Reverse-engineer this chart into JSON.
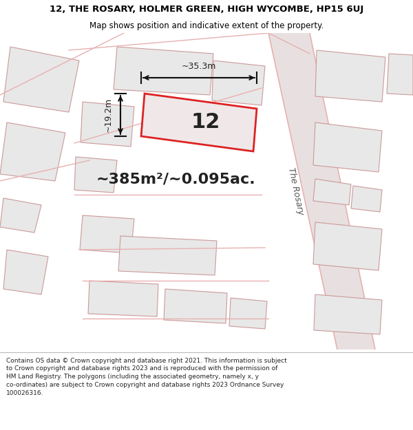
{
  "title_line1": "12, THE ROSARY, HOLMER GREEN, HIGH WYCOMBE, HP15 6UJ",
  "title_line2": "Map shows position and indicative extent of the property.",
  "footer_text": "Contains OS data © Crown copyright and database right 2021. This information is subject to Crown copyright and database rights 2023 and is reproduced with the permission of HM Land Registry. The polygons (including the associated geometry, namely x, y co-ordinates) are subject to Crown copyright and database rights 2023 Ordnance Survey 100026316.",
  "area_label": "~385m²/~0.095ac.",
  "plot_number": "12",
  "width_label": "~35.3m",
  "height_label": "~19.2m",
  "map_background": "#f0eeee",
  "road_color": "#e8b0b0",
  "road_fill": "#e8e0e0",
  "plot_fill": "#f0e8e8",
  "plot_edge_color": "#dd2222",
  "bld_fill": "#e8e8e8",
  "bld_edge": "#cc9999",
  "road_label": "The Rosary",
  "header_bg": "#ffffff",
  "footer_bg": "#ffffff",
  "dim_color": "#111111",
  "text_color": "#222222",
  "header_fontsize": 9.5,
  "sub_fontsize": 8.5,
  "area_fontsize": 16,
  "num_fontsize": 22,
  "dim_fontsize": 9,
  "road_label_fontsize": 9,
  "footer_fontsize": 6.5
}
